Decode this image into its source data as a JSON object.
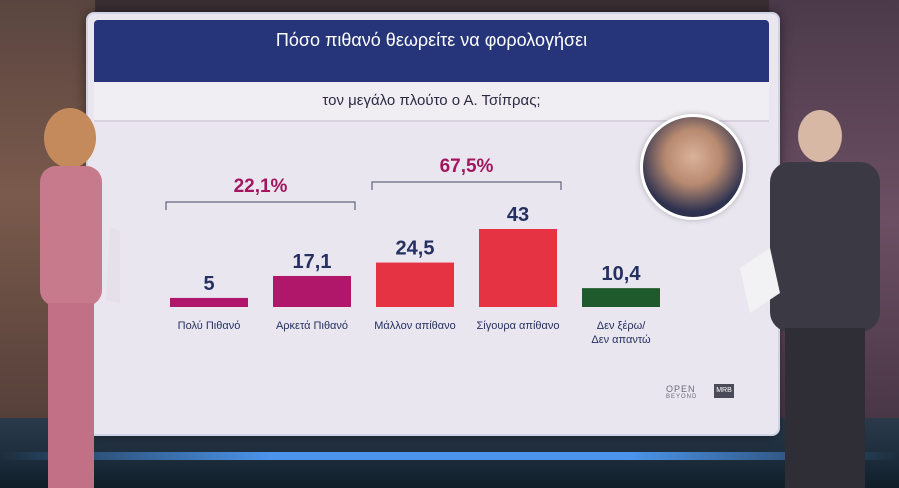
{
  "title": "Πόσο πιθανό θεωρείτε να φορολογήσει",
  "subtitle": "τον μεγάλο πλούτο ο Α. Τσίπρας;",
  "groups": [
    {
      "label": "22,1%",
      "from": 0,
      "to": 1
    },
    {
      "label": "67,5%",
      "from": 2,
      "to": 3
    }
  ],
  "logos": {
    "open": "OPEN",
    "open_sub": "BEYOND",
    "mrb": "MRB"
  },
  "colors": {
    "magenta": "#b0166a",
    "red": "#e63344",
    "green": "#1f5a2c",
    "group": "#a3165e"
  },
  "chart_data": {
    "type": "bar",
    "title": "Πόσο πιθανό θεωρείτε να φορολογήσει τον μεγάλο πλούτο ο Α. Τσίπρας;",
    "categories": [
      "Πολύ Πιθανό",
      "Αρκετά Πιθανό",
      "Μάλλον απίθανο",
      "Σίγουρα απίθανο",
      "Δεν ξέρω/ Δεν απαντώ"
    ],
    "category_lines": [
      [
        "Πολύ Πιθανό"
      ],
      [
        "Αρκετά Πιθανό"
      ],
      [
        "Μάλλον απίθανο"
      ],
      [
        "Σίγουρα απίθανο"
      ],
      [
        "Δεν ξέρω/",
        "Δεν απαντώ"
      ]
    ],
    "values": [
      5,
      17.1,
      24.5,
      43,
      10.4
    ],
    "value_labels": [
      "5",
      "17,1",
      "24,5",
      "43",
      "10,4"
    ],
    "bar_colors": [
      "#b0166a",
      "#b0166a",
      "#e63344",
      "#e63344",
      "#1f5a2c"
    ],
    "grid": false,
    "legend": "none"
  }
}
